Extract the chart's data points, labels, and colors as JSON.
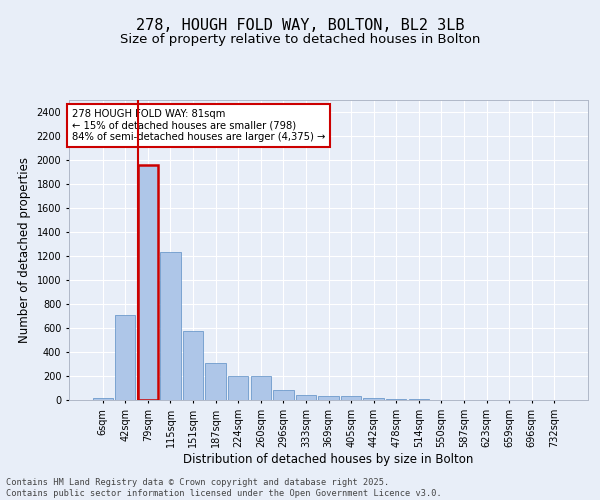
{
  "title1": "278, HOUGH FOLD WAY, BOLTON, BL2 3LB",
  "title2": "Size of property relative to detached houses in Bolton",
  "xlabel": "Distribution of detached houses by size in Bolton",
  "ylabel": "Number of detached properties",
  "categories": [
    "6sqm",
    "42sqm",
    "79sqm",
    "115sqm",
    "151sqm",
    "187sqm",
    "224sqm",
    "260sqm",
    "296sqm",
    "333sqm",
    "369sqm",
    "405sqm",
    "442sqm",
    "478sqm",
    "514sqm",
    "550sqm",
    "587sqm",
    "623sqm",
    "659sqm",
    "696sqm",
    "732sqm"
  ],
  "values": [
    15,
    710,
    1960,
    1235,
    575,
    305,
    200,
    200,
    85,
    45,
    35,
    35,
    20,
    5,
    5,
    0,
    0,
    0,
    0,
    0,
    0
  ],
  "bar_color": "#aec6e8",
  "bar_edge_color": "#5b8ec4",
  "highlight_index": 2,
  "highlight_color": "#cc0000",
  "annotation_text": "278 HOUGH FOLD WAY: 81sqm\n← 15% of detached houses are smaller (798)\n84% of semi-detached houses are larger (4,375) →",
  "annotation_box_color": "#ffffff",
  "annotation_box_edge_color": "#cc0000",
  "ylim": [
    0,
    2500
  ],
  "yticks": [
    0,
    200,
    400,
    600,
    800,
    1000,
    1200,
    1400,
    1600,
    1800,
    2000,
    2200,
    2400
  ],
  "footer": "Contains HM Land Registry data © Crown copyright and database right 2025.\nContains public sector information licensed under the Open Government Licence v3.0.",
  "bg_color": "#e8eef8",
  "grid_color": "#ffffff",
  "title1_fontsize": 11,
  "title2_fontsize": 9.5,
  "tick_fontsize": 7,
  "label_fontsize": 8.5
}
